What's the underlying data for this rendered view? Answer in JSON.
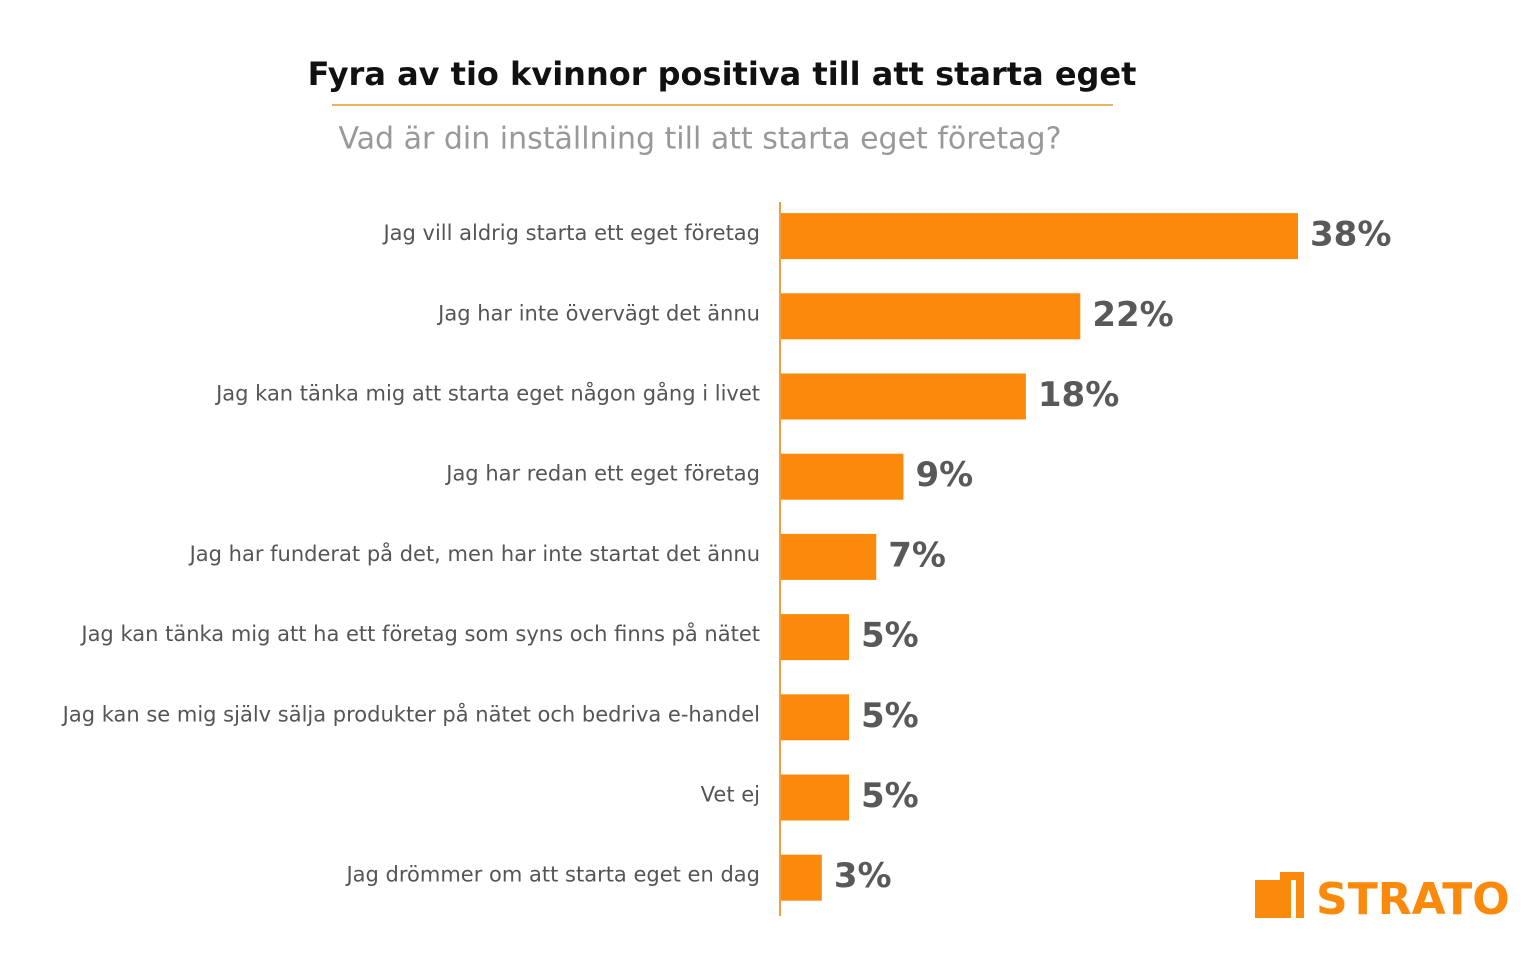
{
  "chart_data": {
    "type": "bar",
    "orientation": "horizontal",
    "title": "Fyra av tio kvinnor positiva till att starta eget",
    "subtitle": "Vad är din inställning till att starta eget företag?",
    "categories": [
      "Jag vill aldrig starta ett eget företag",
      "Jag har inte övervägt det ännu",
      "Jag kan tänka mig att starta eget någon gång i livet",
      "Jag har redan ett eget företag",
      "Jag har funderat på det, men har inte startat det ännu",
      "Jag kan tänka mig att ha ett företag som syns och finns på nätet",
      "Jag kan se mig själv sälja produkter på nätet och bedriva e-handel",
      "Vet ej",
      "Jag drömmer om att starta eget en dag"
    ],
    "values": [
      38,
      22,
      18,
      9,
      7,
      5,
      5,
      5,
      3
    ],
    "value_labels": [
      "38%",
      "22%",
      "18%",
      "9%",
      "7%",
      "5%",
      "5%",
      "5%",
      "3%"
    ],
    "color": "#fb8a0c"
  },
  "logo": "STRATO"
}
